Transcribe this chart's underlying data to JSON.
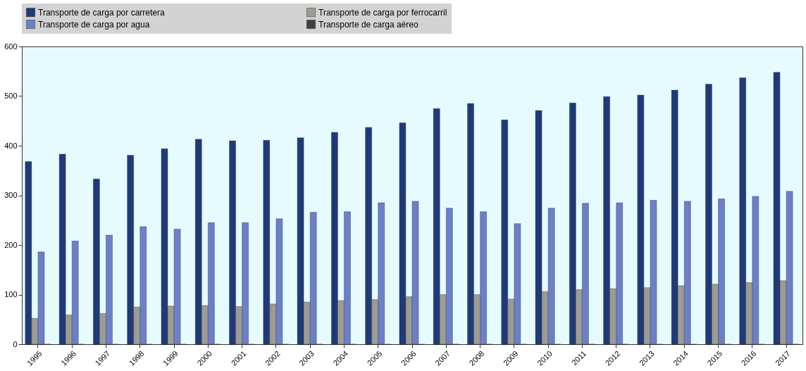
{
  "chart_data": {
    "type": "bar",
    "categories": [
      "1995",
      "1996",
      "1997",
      "1998",
      "1999",
      "2000",
      "2001",
      "2002",
      "2003",
      "2004",
      "2005",
      "2006",
      "2007",
      "2008",
      "2009",
      "2010",
      "2011",
      "2012",
      "2013",
      "2014",
      "2015",
      "2016",
      "2017"
    ],
    "series": [
      {
        "name": "Transporte de carga por carretera",
        "color": "#1f3a7a",
        "values": [
          368,
          383,
          333,
          381,
          394,
          413,
          410,
          411,
          416,
          427,
          437,
          446,
          475,
          485,
          452,
          471,
          486,
          499,
          502,
          512,
          524,
          537,
          548
        ]
      },
      {
        "name": "Transporte de carga por ferrocarril",
        "color": "#9c9c94",
        "values": [
          52,
          59,
          62,
          75,
          77,
          78,
          76,
          81,
          85,
          88,
          90,
          96,
          100,
          100,
          91,
          106,
          110,
          112,
          114,
          118,
          121,
          124,
          128
        ]
      },
      {
        "name": "Transporte de carga por agua",
        "color": "#6b80c8",
        "values": [
          186,
          208,
          220,
          237,
          232,
          245,
          245,
          253,
          266,
          267,
          285,
          288,
          274,
          267,
          243,
          274,
          284,
          285,
          290,
          288,
          293,
          298,
          308
        ]
      },
      {
        "name": "Transporte de carga aéreo",
        "color": "#404040",
        "values": [
          0,
          0,
          0,
          0,
          0,
          0,
          0,
          0,
          0,
          0,
          0,
          0,
          0,
          0,
          0,
          0,
          0,
          0,
          0,
          0,
          0,
          0,
          0
        ]
      }
    ],
    "ylim": [
      0,
      600
    ],
    "yticks": [
      0,
      100,
      200,
      300,
      400,
      500,
      600
    ],
    "grid": false,
    "legend": "top"
  }
}
